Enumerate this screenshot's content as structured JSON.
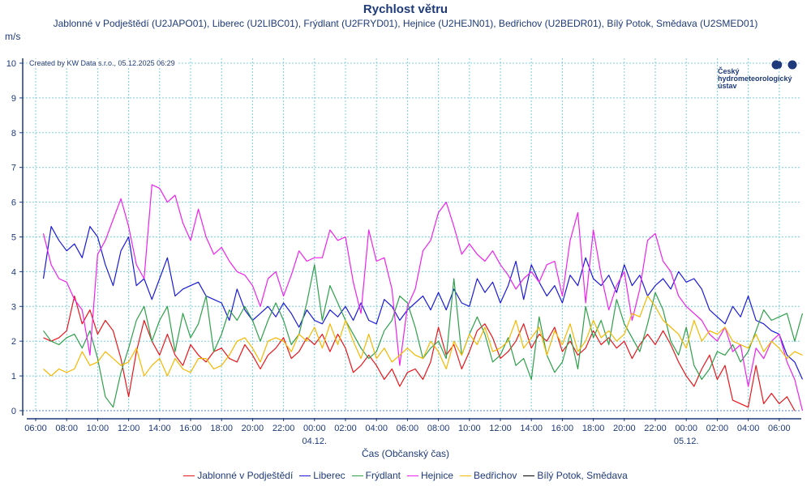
{
  "chart_data": {
    "type": "line",
    "title": "Rychlost větru",
    "subtitle": "Jablonné v Podještědí (U2JAPO01), Liberec (U2LIBC01), Frýdlant (U2FRYD01), Hejnice (U2HEJN01), Bedřichov (U2BEDR01), Bílý Potok, Smědava (U2SMED01)",
    "ylabel": "m/s",
    "xlabel": "Čas (Občanský čas)",
    "credit": "Created by KW Data s.r.o., 05.12.2025 06:29",
    "logo_text": [
      "Český",
      "hydrometeorologický",
      "ústav"
    ],
    "ylim": [
      0,
      10
    ],
    "yticks": [
      "0",
      "1",
      "2",
      "3",
      "4",
      "5",
      "6",
      "7",
      "8",
      "9",
      "10"
    ],
    "xlim_hours_from_start": [
      -0.5,
      49.5
    ],
    "x_start": "03.12.2025 06:00",
    "xticks": [
      {
        "label": "06:00",
        "h": 0
      },
      {
        "label": "08:00",
        "h": 2
      },
      {
        "label": "10:00",
        "h": 4
      },
      {
        "label": "12:00",
        "h": 6
      },
      {
        "label": "14:00",
        "h": 8
      },
      {
        "label": "16:00",
        "h": 10
      },
      {
        "label": "18:00",
        "h": 12
      },
      {
        "label": "20:00",
        "h": 14
      },
      {
        "label": "22:00",
        "h": 16
      },
      {
        "label": "00:00",
        "h": 18,
        "date": "04.12."
      },
      {
        "label": "02:00",
        "h": 20
      },
      {
        "label": "04:00",
        "h": 22
      },
      {
        "label": "06:00",
        "h": 24
      },
      {
        "label": "08:00",
        "h": 26
      },
      {
        "label": "10:00",
        "h": 28
      },
      {
        "label": "12:00",
        "h": 30
      },
      {
        "label": "14:00",
        "h": 32
      },
      {
        "label": "16:00",
        "h": 34
      },
      {
        "label": "18:00",
        "h": 36
      },
      {
        "label": "20:00",
        "h": 38
      },
      {
        "label": "22:00",
        "h": 40
      },
      {
        "label": "00:00",
        "h": 42,
        "date": "05.12."
      },
      {
        "label": "02:00",
        "h": 44
      },
      {
        "label": "04:00",
        "h": 46
      },
      {
        "label": "06:00",
        "h": 48
      }
    ],
    "grid": true,
    "legend_position": "bottom",
    "x_step_hours": 0.5,
    "x_first_hours": 0.5,
    "series": [
      {
        "name": "Jablonné v Podještědí",
        "color": "#e8161b",
        "values": [
          2.1,
          2.0,
          2.1,
          2.3,
          3.3,
          2.5,
          2.9,
          2.2,
          2.6,
          2.3,
          1.5,
          0.4,
          1.7,
          2.6,
          2.0,
          1.6,
          2.2,
          1.6,
          1.3,
          1.9,
          1.6,
          1.4,
          1.7,
          1.8,
          1.5,
          1.4,
          1.9,
          1.6,
          1.2,
          1.6,
          1.8,
          2.1,
          1.5,
          1.7,
          2.1,
          1.9,
          2.2,
          1.7,
          2.2,
          1.8,
          1.1,
          1.3,
          1.6,
          1.3,
          0.9,
          1.2,
          0.7,
          1.1,
          1.2,
          0.9,
          1.4,
          2.4,
          1.6,
          1.9,
          1.2,
          1.7,
          2.3,
          2.5,
          2.1,
          1.5,
          1.7,
          2.0,
          2.5,
          1.8,
          2.2,
          2.0,
          2.4,
          1.7,
          2.0,
          1.6,
          1.8,
          2.3,
          1.9,
          2.1,
          1.8,
          2.0,
          1.5,
          1.9,
          2.2,
          1.9,
          2.3,
          1.9,
          1.4,
          1.0,
          0.7,
          1.2,
          1.6,
          0.9,
          1.3,
          0.3,
          0.2,
          0.1,
          1.3,
          0.2,
          0.5,
          0.2,
          0.4,
          0.0
        ]
      },
      {
        "name": "Liberec",
        "color": "#1b1bd6",
        "values": [
          3.8,
          5.3,
          4.9,
          4.6,
          4.8,
          4.4,
          5.3,
          5.0,
          4.2,
          3.6,
          4.6,
          5.0,
          3.6,
          3.8,
          3.2,
          3.8,
          4.4,
          3.3,
          3.5,
          3.6,
          3.7,
          3.3,
          3.2,
          3.1,
          2.6,
          3.5,
          2.9,
          2.6,
          2.8,
          3.0,
          2.7,
          3.1,
          2.8,
          2.4,
          2.9,
          2.6,
          2.5,
          2.9,
          2.7,
          3.0,
          2.6,
          3.1,
          2.6,
          2.5,
          3.2,
          3.0,
          2.6,
          2.9,
          3.1,
          3.3,
          2.9,
          3.4,
          2.9,
          3.5,
          3.1,
          3.0,
          3.8,
          3.4,
          3.7,
          3.1,
          3.6,
          4.3,
          3.2,
          4.2,
          3.7,
          3.3,
          3.6,
          3.1,
          3.9,
          3.6,
          4.4,
          3.8,
          3.6,
          3.9,
          3.4,
          4.2,
          3.6,
          3.9,
          3.3,
          3.6,
          3.8,
          3.5,
          4.0,
          3.7,
          3.8,
          3.5,
          2.9,
          2.7,
          2.5,
          3.0,
          2.7,
          3.3,
          2.6,
          2.5,
          2.3,
          2.2,
          1.6,
          1.4,
          0.9
        ]
      },
      {
        "name": "Frýdlant",
        "color": "#2ea04a",
        "values": [
          2.3,
          2.0,
          1.9,
          2.1,
          2.2,
          1.8,
          2.3,
          1.5,
          0.4,
          0.1,
          1.1,
          1.8,
          2.6,
          3.0,
          2.0,
          2.6,
          3.0,
          1.7,
          2.8,
          2.1,
          2.5,
          3.3,
          1.7,
          2.2,
          2.9,
          2.6,
          3.0,
          2.6,
          2.0,
          2.6,
          3.1,
          2.6,
          1.9,
          2.2,
          3.1,
          4.2,
          2.6,
          3.6,
          3.1,
          2.6,
          2.2,
          1.8,
          1.5,
          1.7,
          2.3,
          2.6,
          3.3,
          3.1,
          2.4,
          1.5,
          1.8,
          2.0,
          1.5,
          3.8,
          1.6,
          2.2,
          2.7,
          2.2,
          1.4,
          1.6,
          2.1,
          1.3,
          1.5,
          0.9,
          2.7,
          1.6,
          1.1,
          1.4,
          2.2,
          1.2,
          3.0,
          2.1,
          2.6,
          1.9,
          3.2,
          2.5,
          2.1,
          1.7,
          2.5,
          3.4,
          2.9,
          2.0,
          1.6,
          2.4,
          1.3,
          0.9,
          1.2,
          1.7,
          1.6,
          1.9,
          1.4,
          1.7,
          2.3,
          2.9,
          2.6,
          2.7,
          2.8,
          2.0,
          2.8
        ]
      },
      {
        "name": "Hejnice",
        "color": "#ee22ee",
        "values": [
          5.1,
          4.2,
          3.8,
          3.7,
          3.2,
          2.9,
          1.6,
          4.5,
          4.9,
          5.5,
          6.1,
          5.3,
          4.2,
          3.8,
          6.5,
          6.4,
          6.0,
          6.2,
          5.4,
          4.9,
          5.8,
          5.0,
          4.5,
          4.7,
          4.3,
          4.0,
          3.9,
          3.6,
          3.0,
          3.8,
          4.0,
          3.3,
          3.9,
          4.6,
          4.3,
          4.4,
          4.4,
          5.2,
          4.9,
          5.0,
          3.7,
          2.8,
          5.2,
          4.3,
          4.4,
          3.5,
          1.3,
          3.0,
          3.5,
          4.6,
          4.9,
          5.7,
          6.0,
          5.3,
          4.5,
          4.8,
          4.5,
          4.3,
          4.6,
          4.2,
          3.9,
          3.5,
          3.8,
          4.0,
          3.7,
          4.2,
          4.3,
          3.3,
          4.9,
          5.7,
          3.1,
          5.2,
          3.9,
          2.9,
          3.6,
          4.0,
          2.6,
          3.5,
          4.9,
          5.1,
          4.3,
          4.0,
          3.3,
          3.0,
          2.8,
          2.6,
          2.2,
          2.0,
          2.4,
          1.7,
          1.9,
          0.7,
          1.8,
          1.5,
          2.0,
          2.2,
          1.4,
          0.9,
          0.0
        ]
      },
      {
        "name": "Bedřichov",
        "color": "#f5b800",
        "values": [
          1.2,
          1.0,
          1.2,
          1.1,
          1.2,
          1.7,
          1.3,
          1.4,
          1.7,
          1.5,
          1.3,
          1.4,
          1.8,
          1.0,
          1.3,
          1.5,
          1.0,
          1.5,
          1.2,
          1.1,
          1.5,
          1.5,
          1.2,
          1.3,
          1.6,
          2.0,
          2.1,
          1.8,
          1.4,
          2.0,
          2.1,
          2.0,
          1.7,
          2.2,
          2.0,
          2.4,
          1.8,
          2.5,
          1.9,
          2.6,
          2.0,
          1.5,
          2.2,
          1.5,
          1.8,
          1.4,
          1.6,
          1.8,
          1.6,
          1.5,
          2.0,
          1.7,
          1.2,
          2.0,
          1.6,
          2.2,
          1.9,
          2.4,
          1.7,
          1.8,
          2.0,
          2.6,
          1.8,
          2.1,
          2.4,
          1.6,
          2.3,
          1.9,
          2.5,
          1.7,
          2.0,
          2.6,
          2.1,
          2.3,
          2.0,
          2.2,
          2.8,
          2.7,
          3.3,
          3.0,
          2.6,
          2.4,
          2.2,
          1.8,
          2.6,
          2.0,
          2.3,
          2.2,
          2.4,
          2.0,
          1.9,
          1.8,
          2.2,
          1.7,
          2.0,
          1.8,
          1.5,
          1.7,
          1.6
        ]
      },
      {
        "name": "Bílý Potok, Smědava",
        "color": "#000000",
        "values": []
      }
    ]
  }
}
